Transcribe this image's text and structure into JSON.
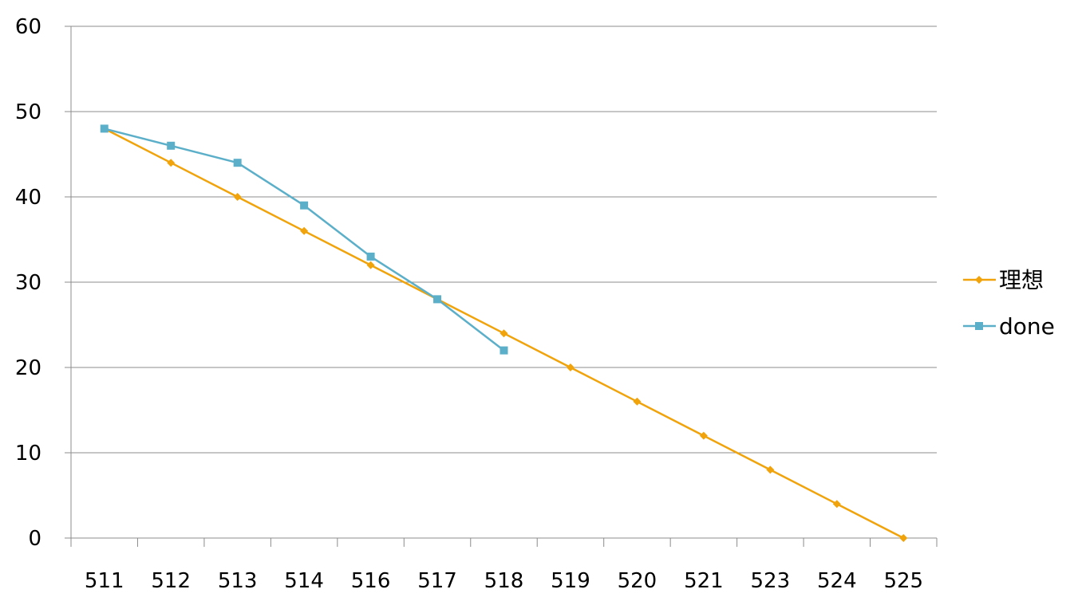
{
  "chart_data": {
    "type": "line",
    "categories": [
      "511",
      "512",
      "513",
      "514",
      "516",
      "517",
      "518",
      "519",
      "520",
      "521",
      "523",
      "524",
      "525"
    ],
    "series": [
      {
        "name": "理想",
        "color": "#f0a30a",
        "marker": "diamond",
        "values": [
          48,
          44,
          40,
          36,
          32,
          28,
          24,
          20,
          16,
          12,
          8,
          4,
          0
        ]
      },
      {
        "name": "done",
        "color": "#5bafc9",
        "marker": "square",
        "values": [
          48,
          46,
          44,
          39,
          33,
          28,
          22,
          null,
          null,
          null,
          null,
          null,
          null
        ]
      }
    ],
    "ylim": [
      0,
      60
    ],
    "yticks": [
      0,
      10,
      20,
      30,
      40,
      50,
      60
    ],
    "grid": true,
    "legend_position": "right",
    "title": "",
    "xlabel": "",
    "ylabel": ""
  }
}
